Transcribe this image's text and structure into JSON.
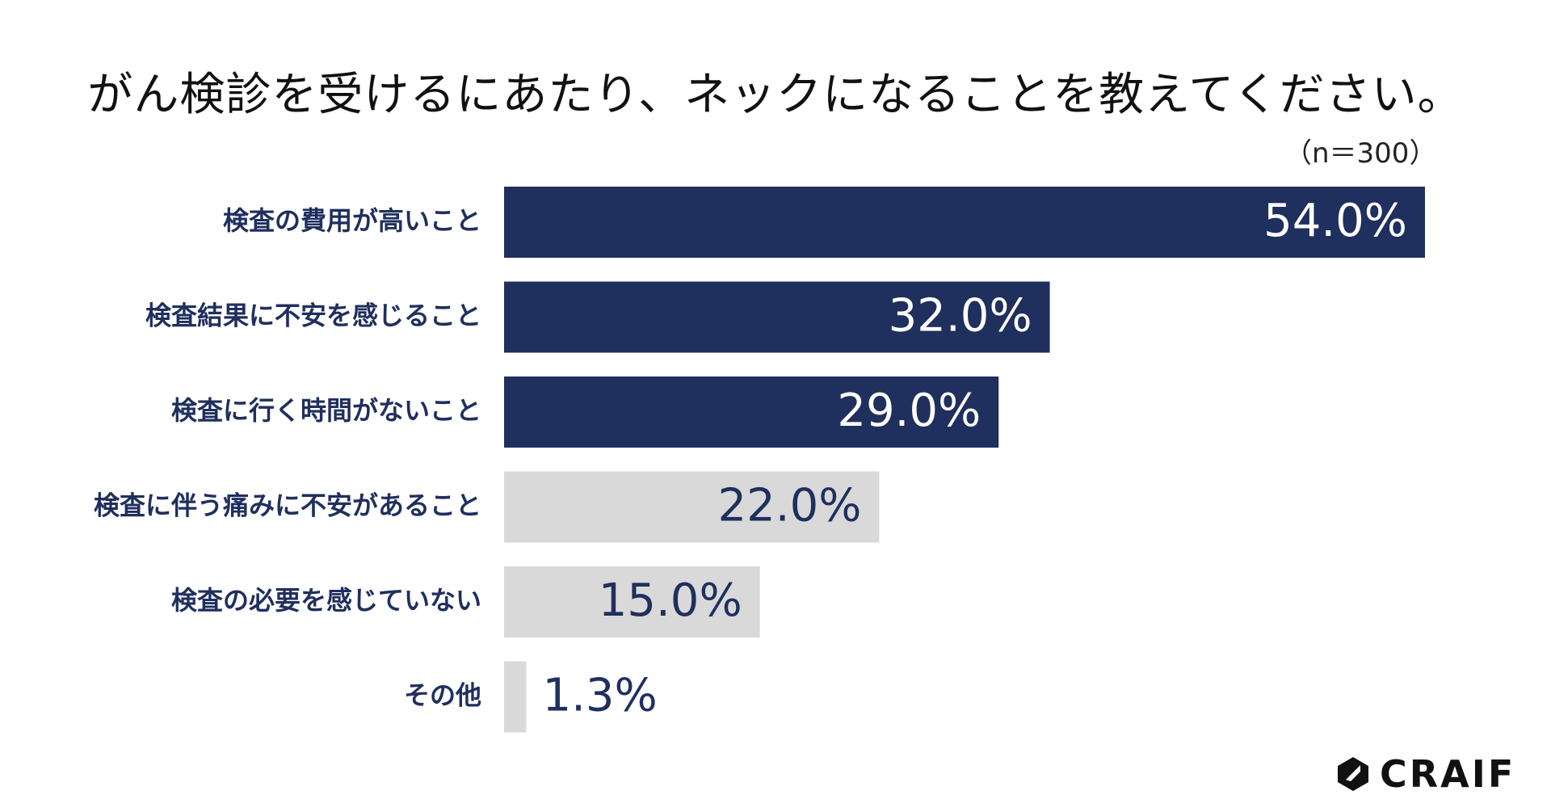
{
  "title": "がん検診を受けるにあたり、ネックになることを教えてください。",
  "sample_note": "（n＝300）",
  "logo_text": "CRAIF",
  "colors": {
    "highlight_bar": "#1f2f5e",
    "muted_bar": "#d9d9d9",
    "highlight_value_text": "#ffffff",
    "muted_value_text": "#1f2f5e",
    "category_text": "#1f2f5e"
  },
  "chart_data": {
    "type": "bar",
    "orientation": "horizontal",
    "categories": [
      "検査の費用が高いこと",
      "検査結果に不安を感じること",
      "検査に行く時間がないこと",
      "検査に伴う痛みに不安があること",
      "検査の必要を感じていない",
      "その他"
    ],
    "values": [
      54.0,
      32.0,
      29.0,
      22.0,
      15.0,
      1.3
    ],
    "value_labels": [
      "54.0%",
      "32.0%",
      "29.0%",
      "22.0%",
      "15.0%",
      "1.3%"
    ],
    "highlighted": [
      true,
      true,
      true,
      false,
      false,
      false
    ],
    "xlim": [
      0,
      54
    ],
    "grid": false,
    "legend": "none"
  }
}
